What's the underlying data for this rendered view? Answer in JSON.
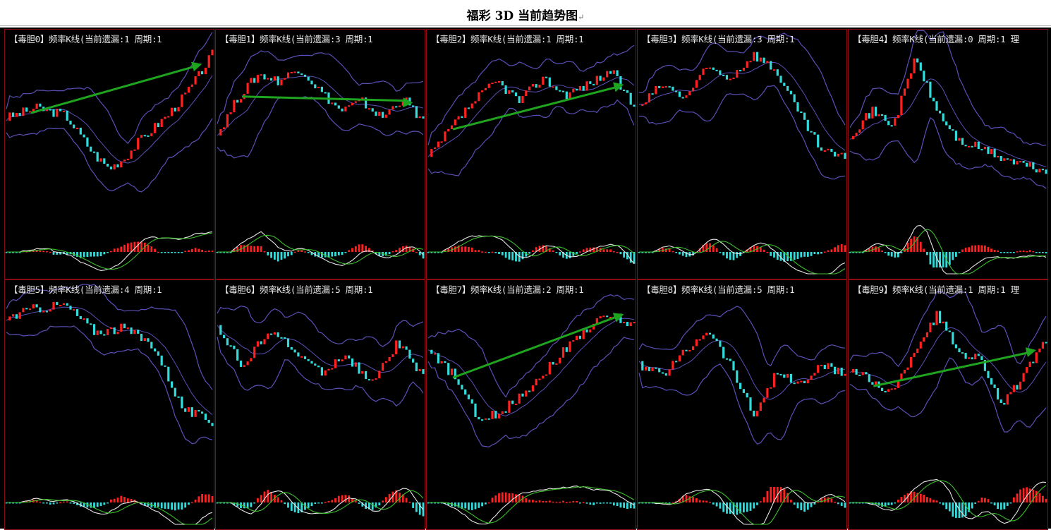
{
  "page": {
    "title": "福彩 3D 当前趋势图",
    "title_mark": "↵"
  },
  "colors": {
    "background": "#000000",
    "border": "#8a0c12",
    "up": "#ff2020",
    "down": "#33dcdc",
    "band": "#5a50b8",
    "macd_white": "#e6e6e6",
    "macd_green": "#3bbf2a",
    "arrow": "#1fa41f",
    "title_text": "#e8e8e8"
  },
  "panels": [
    {
      "title": "【毒胆0】频率K线(当前遗漏:1 周期:1",
      "arrow": true
    },
    {
      "title": "【毒胆1】频率K线(当前遗漏:3 周期:1",
      "arrow": true
    },
    {
      "title": "【毒胆2】频率K线(当前遗漏:1 周期:1",
      "arrow": true
    },
    {
      "title": "【毒胆3】频率K线(当前遗漏:3 周期:1",
      "arrow": false
    },
    {
      "title": "【毒胆4】频率K线(当前遗漏:0 周期:1 理",
      "arrow": false
    },
    {
      "title": "【毒胆5】频率K线(当前遗漏:4 周期:1",
      "arrow": false
    },
    {
      "title": "【毒胆6】频率K线(当前遗漏:5 周期:1",
      "arrow": false
    },
    {
      "title": "【毒胆7】频率K线(当前遗漏:2 周期:1",
      "arrow": true
    },
    {
      "title": "【毒胆8】频率K线(当前遗漏:5 周期:1",
      "arrow": false
    },
    {
      "title": "【毒胆9】频率K线(当前遗漏:1 周期:1 理",
      "arrow": true
    }
  ],
  "chart_data": [
    {
      "type": "line",
      "series": [
        {
          "values": [
            0.6,
            0.63,
            0.66,
            0.64,
            0.62,
            0.5,
            0.38,
            0.3,
            0.36,
            0.46,
            0.54,
            0.62,
            0.72,
            0.84,
            0.98
          ]
        }
      ]
    },
    {
      "type": "line",
      "series": [
        {
          "values": [
            0.5,
            0.72,
            0.86,
            0.82,
            0.9,
            0.76,
            0.64,
            0.7,
            0.6,
            0.72,
            0.58
          ]
        }
      ]
    },
    {
      "type": "line",
      "series": [
        {
          "values": [
            0.36,
            0.54,
            0.7,
            0.82,
            0.7,
            0.84,
            0.74,
            0.8,
            0.88,
            0.66
          ]
        }
      ]
    },
    {
      "type": "line",
      "series": [
        {
          "values": [
            0.66,
            0.8,
            0.72,
            0.9,
            0.84,
            0.98,
            0.88,
            0.62,
            0.4,
            0.36
          ]
        }
      ]
    },
    {
      "type": "line",
      "series": [
        {
          "values": [
            0.5,
            0.64,
            0.56,
            0.96,
            0.64,
            0.46,
            0.42,
            0.36,
            0.32,
            0.28
          ]
        }
      ]
    },
    {
      "type": "line",
      "series": [
        {
          "values": [
            0.9,
            0.96,
            0.98,
            0.82,
            0.84,
            0.74,
            0.36,
            0.28
          ]
        }
      ]
    },
    {
      "type": "line",
      "series": [
        {
          "values": [
            0.86,
            0.6,
            0.84,
            0.7,
            0.58,
            0.68,
            0.5,
            0.76,
            0.54
          ]
        }
      ]
    },
    {
      "type": "line",
      "series": [
        {
          "values": [
            0.7,
            0.56,
            0.28,
            0.36,
            0.5,
            0.66,
            0.82,
            0.92,
            0.86
          ]
        }
      ]
    },
    {
      "type": "line",
      "series": [
        {
          "values": [
            0.62,
            0.56,
            0.7,
            0.84,
            0.62,
            0.32,
            0.58,
            0.5,
            0.62,
            0.56
          ]
        }
      ]
    },
    {
      "type": "line",
      "series": [
        {
          "values": [
            0.6,
            0.52,
            0.46,
            0.72,
            0.92,
            0.7,
            0.66,
            0.38,
            0.56,
            0.76
          ]
        }
      ]
    }
  ]
}
